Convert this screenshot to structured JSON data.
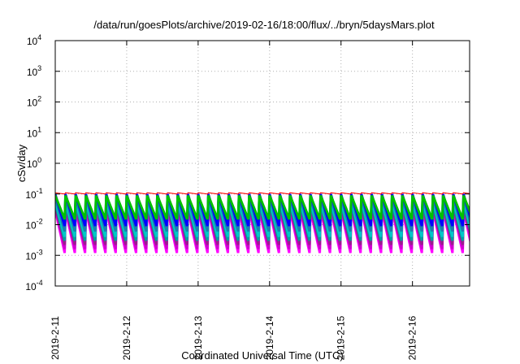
{
  "chart_data": {
    "type": "line",
    "title": "/data/run/goesPlots/archive/2019-02-16/18:00/flux/../bryn/5daysMars.plot",
    "xlabel": "Coordinated Universal Time (UTC)",
    "ylabel": "cSv/day",
    "yscale": "log",
    "ylim_exponents": [
      -4,
      4
    ],
    "y_tick_base": "10",
    "y_tick_exponents": [
      "-4",
      "-3",
      "-2",
      "-1",
      "0",
      "1",
      "2",
      "3",
      "4"
    ],
    "x_tick_labels": [
      "2019-2-11",
      "2019-2-12",
      "2019-2-13",
      "2019-2-14",
      "2019-2-15",
      "2019-2-16"
    ],
    "grid": true,
    "cycles_per_day": 7,
    "series": [
      {
        "color": "#ff00ff",
        "peak": 0.03,
        "trough": 0.0012
      },
      {
        "color": "#d000d0",
        "peak": 0.035,
        "trough": 0.0016
      },
      {
        "color": "#9a1d8e",
        "peak": 0.04,
        "trough": 0.0022
      },
      {
        "color": "#00a0a0",
        "peak": 0.05,
        "trough": 0.003
      },
      {
        "color": "#00c8c8",
        "peak": 0.06,
        "trough": 0.004
      },
      {
        "color": "#1a7fb0",
        "peak": 0.08,
        "trough": 0.006
      },
      {
        "color": "#0000ff",
        "peak": 0.1,
        "trough": 0.009
      },
      {
        "color": "#00c000",
        "peak": 0.09,
        "trough": 0.015
      },
      {
        "color": "#ff0000",
        "peak": 0.11,
        "trough": 0.1
      }
    ]
  }
}
